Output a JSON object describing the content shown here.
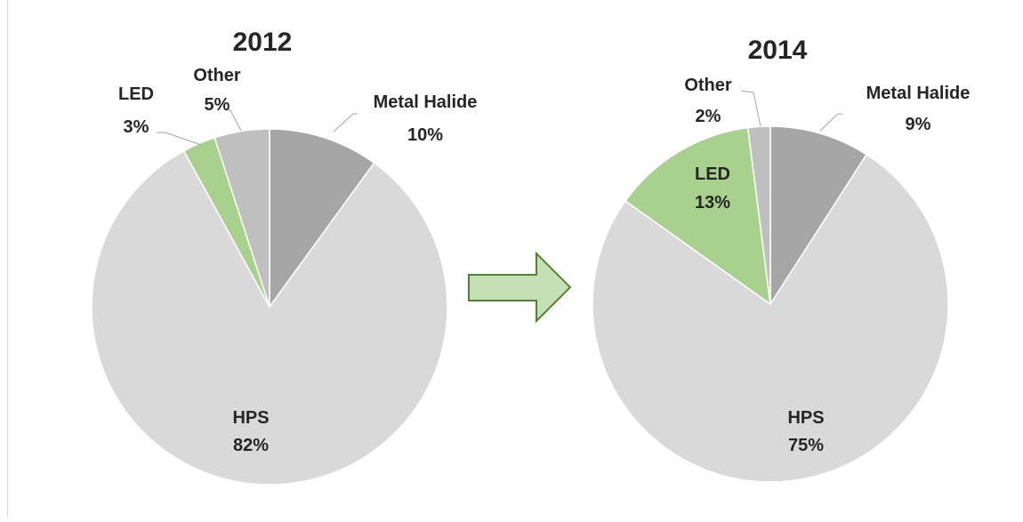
{
  "chart_data": [
    {
      "type": "pie",
      "title": "2012",
      "slices": [
        {
          "label": "Metal Halide",
          "value": 10,
          "display": "10%",
          "color": "#a6a6a6"
        },
        {
          "label": "HPS",
          "value": 82,
          "display": "82%",
          "color": "#d9d9d9"
        },
        {
          "label": "LED",
          "value": 3,
          "display": "3%",
          "color": "#a9d18e"
        },
        {
          "label": "Other",
          "value": 5,
          "display": "5%",
          "color": "#bfbfbf"
        }
      ]
    },
    {
      "type": "pie",
      "title": "2014",
      "slices": [
        {
          "label": "Metal Halide",
          "value": 9,
          "display": "9%",
          "color": "#a6a6a6"
        },
        {
          "label": "HPS",
          "value": 75,
          "display": "75%",
          "color": "#d9d9d9"
        },
        {
          "label": "LED",
          "value": 13,
          "display": "13%",
          "color": "#a9d18e"
        },
        {
          "label": "Other",
          "value": 2,
          "display": "2%",
          "color": "#bfbfbf"
        }
      ]
    }
  ],
  "arrow": {
    "fill": "#c5e0b4",
    "stroke": "#548235"
  }
}
